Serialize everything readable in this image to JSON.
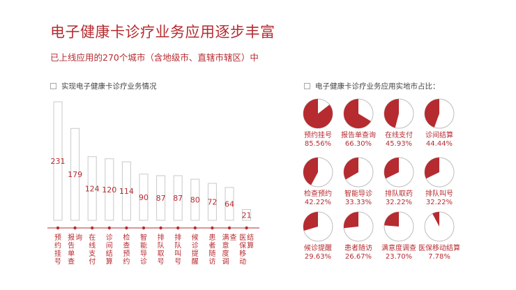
{
  "header": {
    "title": "电子健康卡诊疗业务应用逐步丰富",
    "subtitle": "已上线应用的270个城市（含地级市、直辖市辖区）中"
  },
  "colors": {
    "accent": "#b62b30",
    "bar_stroke": "#c9c9c9",
    "pie_stroke": "#bdbdbd"
  },
  "chart_data": [
    {
      "type": "bar",
      "title": "实现电子健康卡诊疗业务情况",
      "categories": [
        "预约挂号",
        "报告单查询",
        "在线支付",
        "诊间结算",
        "检查预约",
        "智能导诊",
        "排队取号",
        "排队叫号",
        "候诊提醒",
        "患者随访",
        "满意度调查",
        "医保移动结算"
      ],
      "values": [
        231,
        179,
        124,
        120,
        114,
        90,
        87,
        87,
        80,
        72,
        64,
        21
      ],
      "ylim": [
        0,
        231
      ]
    },
    {
      "type": "pie",
      "title": "电子健康卡诊疗业务应用实地市占比：",
      "items": [
        {
          "label": "预约挂号",
          "value": 85.56,
          "text": "85.56%"
        },
        {
          "label": "报告单查询",
          "value": 66.3,
          "text": "66.30%"
        },
        {
          "label": "在线支付",
          "value": 45.93,
          "text": "45.93%"
        },
        {
          "label": "诊间结算",
          "value": 44.44,
          "text": "44.44%"
        },
        {
          "label": "检查预约",
          "value": 42.22,
          "text": "42.22%"
        },
        {
          "label": "智能导诊",
          "value": 33.33,
          "text": "33.33%"
        },
        {
          "label": "排队取药",
          "value": 32.22,
          "text": "32.22%"
        },
        {
          "label": "排队叫号",
          "value": 32.22,
          "text": "32.22%"
        },
        {
          "label": "候诊提醒",
          "value": 29.63,
          "text": "29.63%"
        },
        {
          "label": "患者随访",
          "value": 26.67,
          "text": "26.67%"
        },
        {
          "label": "满意度调查",
          "value": 23.7,
          "text": "23.70%"
        },
        {
          "label": "医保移动结算",
          "value": 7.78,
          "text": "7.78%"
        }
      ]
    }
  ]
}
